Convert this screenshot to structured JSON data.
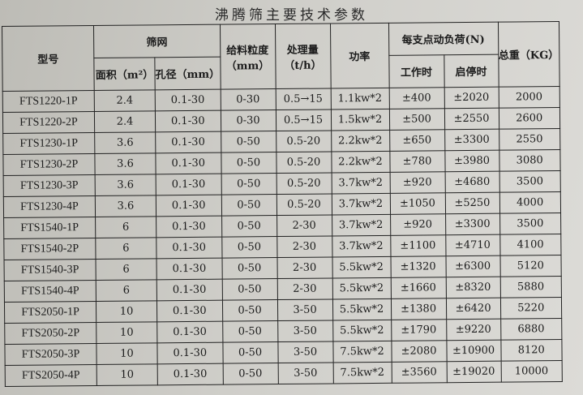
{
  "title": "沸腾筛主要技术参数",
  "headers": {
    "model": "型号",
    "screen": "筛网",
    "area": "面积（m²）",
    "aperture": "孔径（mm）",
    "feed_size": "给料粒度（mm）",
    "capacity": "处理量（t/h）",
    "power": "功率",
    "dynamic_load": "每支点动负荷(N)",
    "working": "工作时",
    "start_stop": "启停时",
    "weight": "总重（KG）"
  },
  "rows": [
    [
      "FTS1220-1P",
      "2.4",
      "0.1-30",
      "0-30",
      "0.5→15",
      "1.1kw*2",
      "±400",
      "±2020",
      "2000"
    ],
    [
      "FTS1220-2P",
      "2.4",
      "0.1-30",
      "0-30",
      "0.5→15",
      "1.5kw*2",
      "±500",
      "±2550",
      "2600"
    ],
    [
      "FTS1230-1P",
      "3.6",
      "0.1-30",
      "0-50",
      "0.5-20",
      "2.2kw*2",
      "±650",
      "±3300",
      "2550"
    ],
    [
      "FTS1230-2P",
      "3.6",
      "0.1-30",
      "0-50",
      "0.5-20",
      "2.2kw*2",
      "±780",
      "±3980",
      "3080"
    ],
    [
      "FTS1230-3P",
      "3.6",
      "0.1-30",
      "0-50",
      "0.5-20",
      "3.7kw*2",
      "±920",
      "±4680",
      "3500"
    ],
    [
      "FTS1230-4P",
      "3.6",
      "0.1-30",
      "0-50",
      "0.5-20",
      "3.7kw*2",
      "±1050",
      "±5250",
      "4000"
    ],
    [
      "FTS1540-1P",
      "6",
      "0.1-30",
      "0-50",
      "2-30",
      "3.7kw*2",
      "±920",
      "±3300",
      "3500"
    ],
    [
      "FTS1540-2P",
      "6",
      "0.1-30",
      "0-50",
      "2-30",
      "3.7kw*2",
      "±1100",
      "±4710",
      "4100"
    ],
    [
      "FTS1540-3P",
      "6",
      "0.1-30",
      "0-50",
      "2-30",
      "5.5kw*2",
      "±1320",
      "±6300",
      "5120"
    ],
    [
      "FTS1540-4P",
      "6",
      "0.1-30",
      "0-50",
      "2-30",
      "5.5kw*2",
      "±1660",
      "±8320",
      "5880"
    ],
    [
      "FTS2050-1P",
      "10",
      "0.1-30",
      "0-50",
      "3-50",
      "5.5kw*2",
      "±1380",
      "±6420",
      "5220"
    ],
    [
      "FTS2050-2P",
      "10",
      "0.1-30",
      "0-50",
      "3-50",
      "5.5kw*2",
      "±1790",
      "±9220",
      "6880"
    ],
    [
      "FTS2050-3P",
      "10",
      "0.1-30",
      "0-50",
      "3-50",
      "7.5kw*2",
      "±2080",
      "±10900",
      "8120"
    ],
    [
      "FTS2050-4P",
      "10",
      "0.1-30",
      "0-50",
      "3-50",
      "7.5kw*2",
      "±3560",
      "±19020",
      "10000"
    ]
  ]
}
